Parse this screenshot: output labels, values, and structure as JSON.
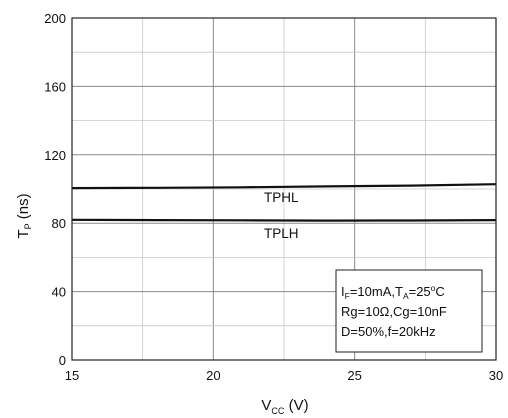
{
  "chart_data": {
    "type": "line",
    "title": "",
    "xlabel": {
      "main": "V",
      "sub": "CC",
      "unit": " (V)"
    },
    "ylabel": {
      "main": "T",
      "sub": "P",
      "unit": " (ns)"
    },
    "xlim": [
      15,
      30
    ],
    "ylim": [
      0,
      200
    ],
    "x_ticks": [
      "15",
      "20",
      "25",
      "30"
    ],
    "y_ticks": [
      "0",
      "40",
      "80",
      "120",
      "160",
      "200"
    ],
    "x_tick_values": [
      15,
      20,
      25,
      30
    ],
    "y_tick_values": [
      0,
      40,
      80,
      120,
      160,
      200
    ],
    "grid": true,
    "series": [
      {
        "name": "TPHL",
        "x": [
          15,
          18,
          21,
          24,
          27,
          30
        ],
        "y": [
          100.5,
          100.7,
          101,
          101.5,
          102,
          102.8
        ]
      },
      {
        "name": "TPLH",
        "x": [
          15,
          18,
          21,
          24,
          27,
          30
        ],
        "y": [
          82,
          81.8,
          81.7,
          81.5,
          81.6,
          81.8
        ]
      }
    ],
    "conditions": {
      "line1": {
        "a": "I",
        "a_sub": "F",
        "b": "=10mA,T",
        "b_sub": "A",
        "c": "=25",
        "c_sup": "o",
        "d": "C"
      },
      "line2": "Rg=10Ω,Cg=10nF",
      "line3": "D=50%,f=20kHz"
    }
  }
}
